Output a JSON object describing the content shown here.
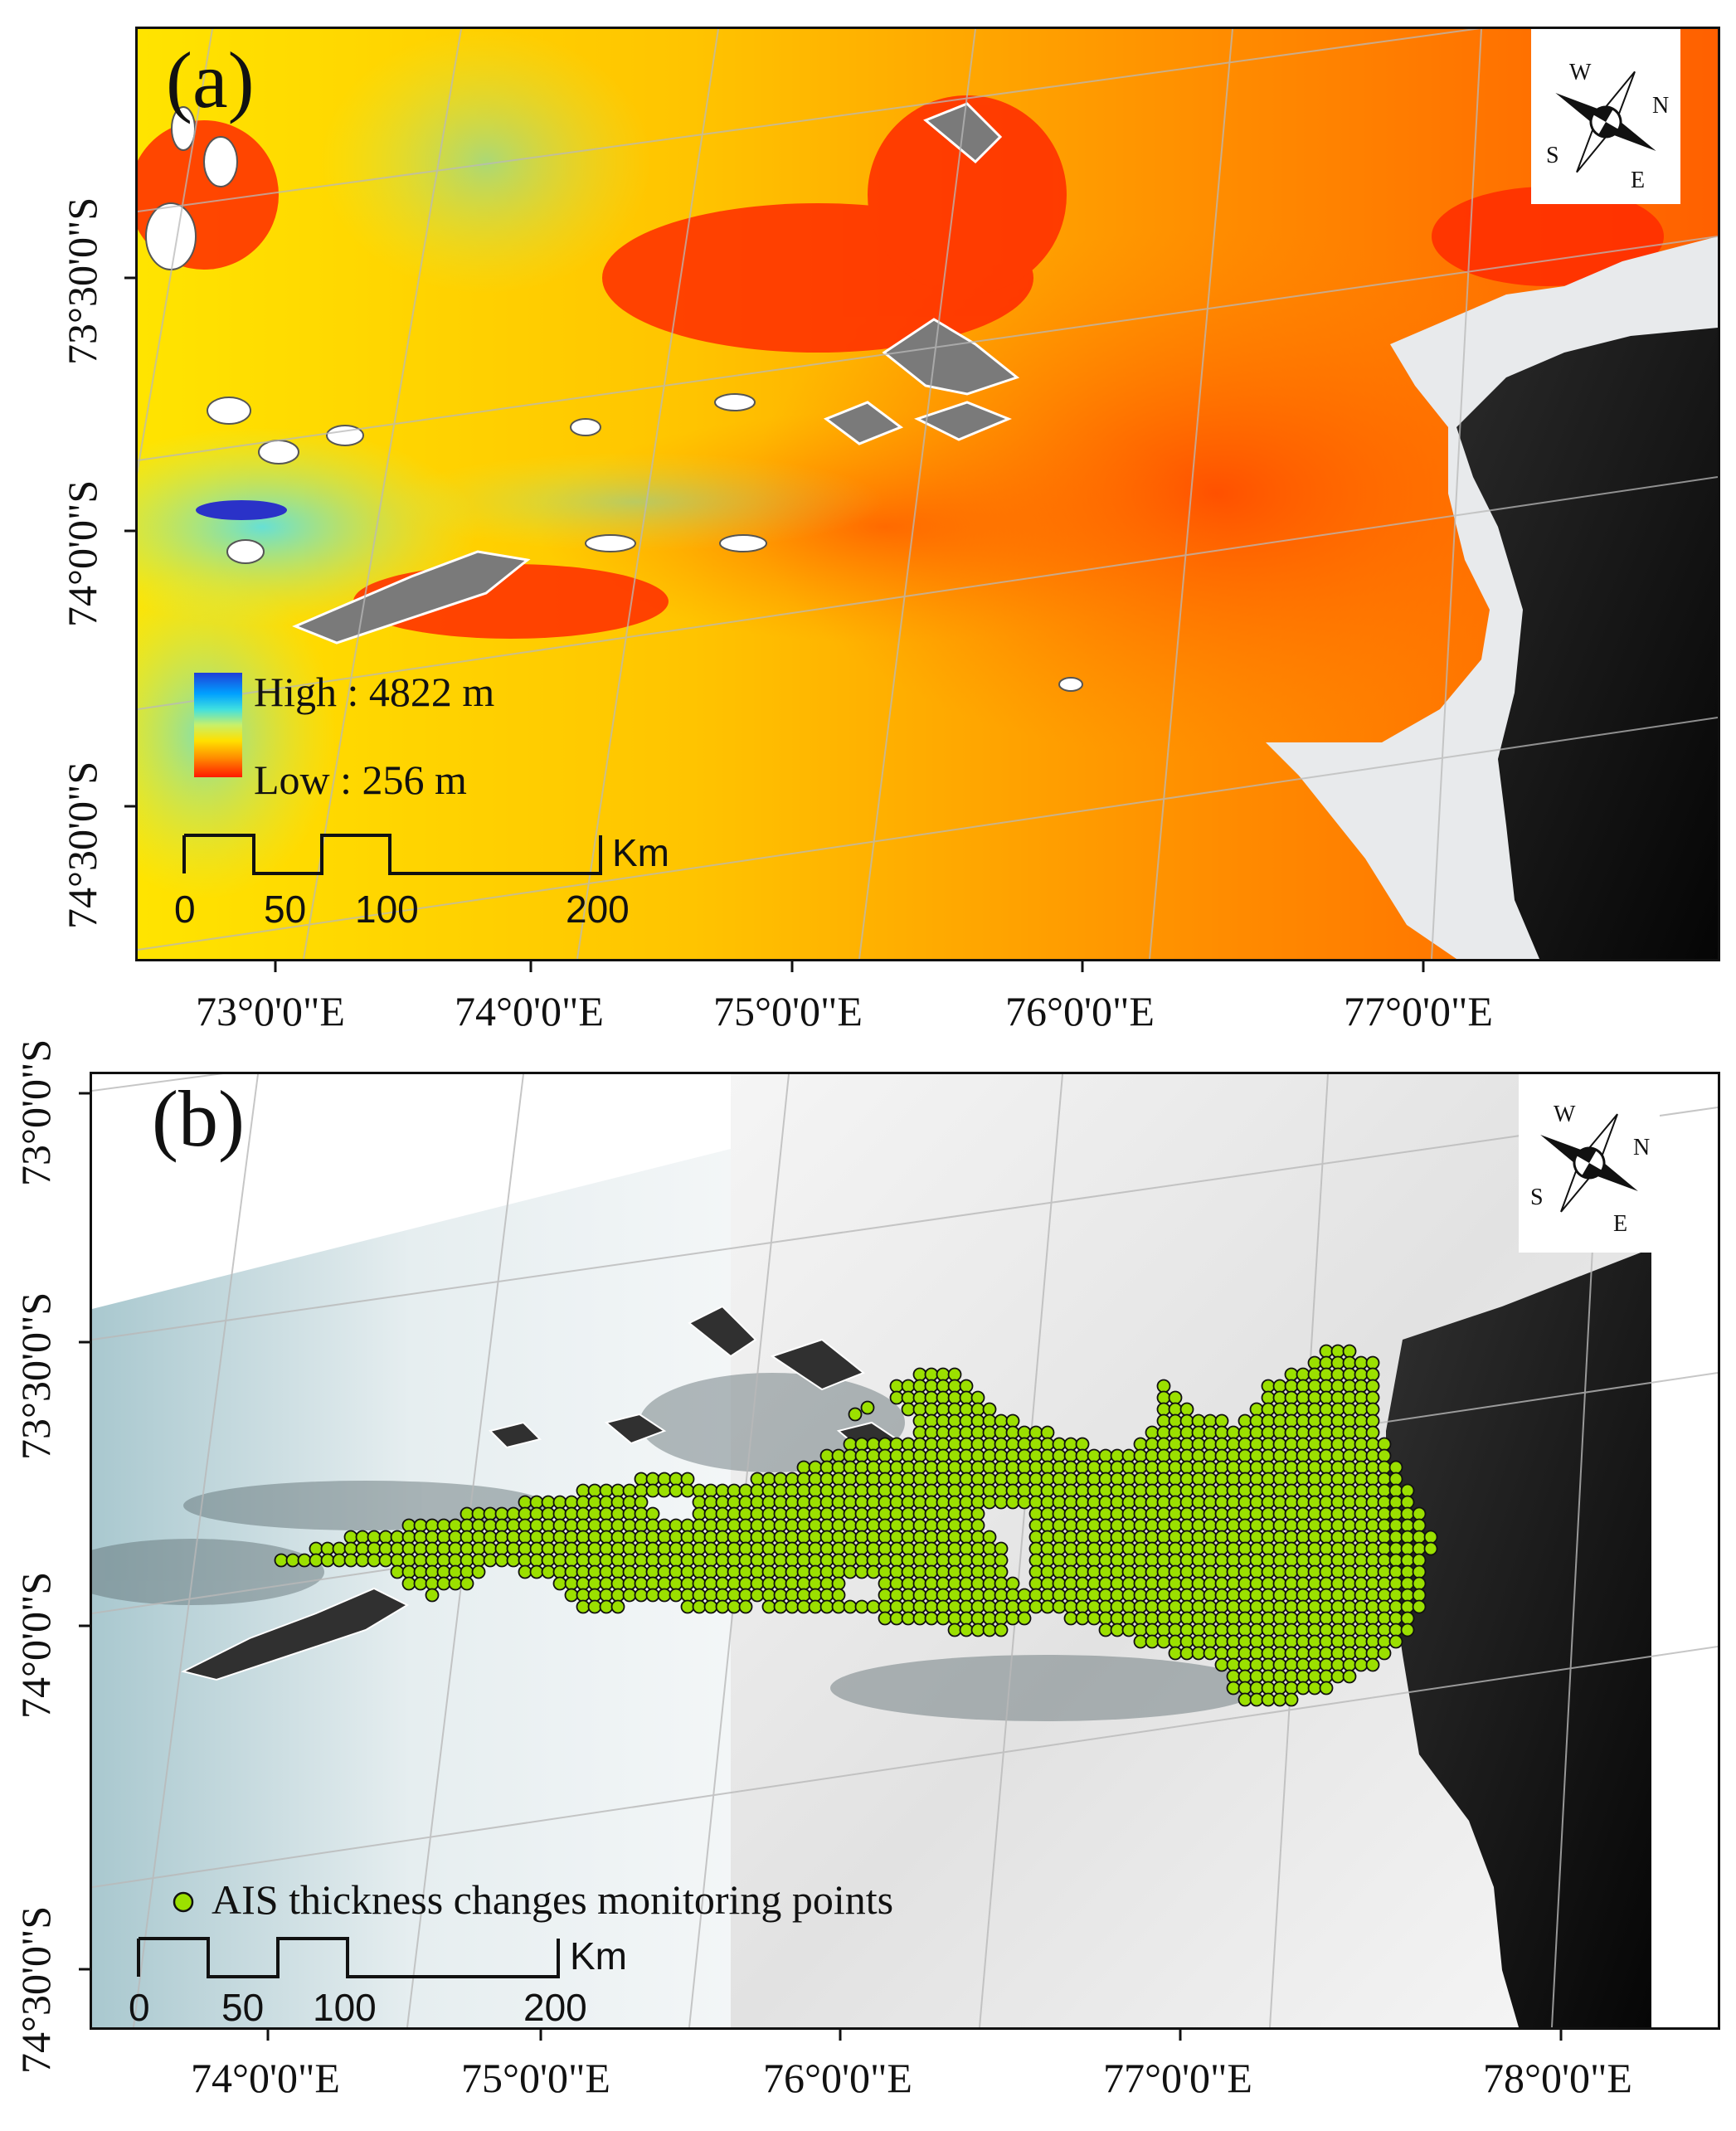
{
  "panel_a": {
    "label": "(a)",
    "legend": {
      "high": "High : 4822 m",
      "low": "Low : 256 m"
    },
    "lat_labels": [
      "73°30'0\"S",
      "74°0'0\"S",
      "74°30'0\"S"
    ],
    "lon_labels": [
      "73°0'0\"E",
      "74°0'0\"E",
      "75°0'0\"E",
      "76°0'0\"E",
      "77°0'0\"E"
    ],
    "scale": {
      "ticks": [
        "0",
        "50",
        "100",
        "200"
      ],
      "unit": "Km"
    },
    "compass": {
      "n": "N",
      "s": "S",
      "e": "E",
      "w": "W"
    },
    "colors": {
      "high": "#1f3fd8",
      "low": "#ff1a00",
      "mid": "#ffd800"
    }
  },
  "panel_b": {
    "label": "(b)",
    "legend": {
      "marker_label": "AIS thickness changes monitoring points",
      "marker_color": "#9be000"
    },
    "lat_labels": [
      "73°0'0\"S",
      "73°30'0\"S",
      "74°0'0\"S",
      "74°30'0\"S"
    ],
    "lon_labels": [
      "74°0'0\"E",
      "75°0'0\"E",
      "76°0'0\"E",
      "77°0'0\"E",
      "78°0'0\"E"
    ],
    "scale": {
      "ticks": [
        "0",
        "50",
        "100",
        "200"
      ],
      "unit": "Km"
    },
    "compass": {
      "n": "N",
      "s": "S",
      "e": "E",
      "w": "W"
    }
  }
}
